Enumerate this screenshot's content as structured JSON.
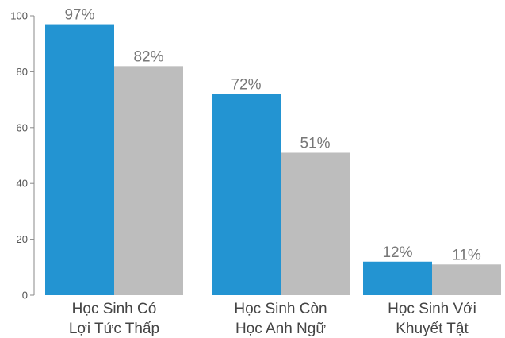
{
  "chart_data": {
    "type": "bar",
    "categories": [
      [
        "Học Sinh Có",
        "Lợi Tức Thấp"
      ],
      [
        "Học Sinh Còn",
        "Học Anh Ngữ"
      ],
      [
        "Học Sinh Với",
        "Khuyết Tật"
      ]
    ],
    "series": [
      {
        "color": "#2394d2",
        "values": [
          97,
          72,
          12
        ],
        "labels": [
          "97%",
          "72%",
          "12%"
        ]
      },
      {
        "color": "#bdbdbd",
        "values": [
          82,
          51,
          11
        ],
        "labels": [
          "82%",
          "51%",
          "11%"
        ]
      }
    ],
    "ylim": [
      0,
      100
    ],
    "yticks": [
      "0",
      "20",
      "40",
      "60",
      "80",
      "100"
    ],
    "grid": false,
    "legend": "none"
  }
}
